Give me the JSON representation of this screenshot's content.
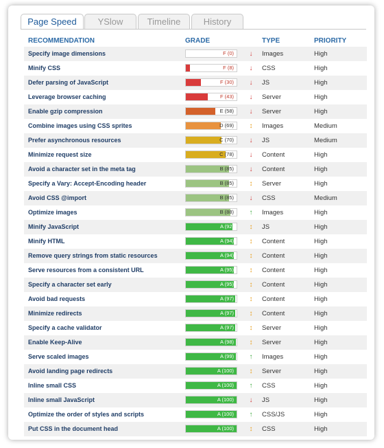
{
  "tabs": [
    {
      "label": "Page Speed",
      "active": true
    },
    {
      "label": "YSlow",
      "active": false
    },
    {
      "label": "Timeline",
      "active": false
    },
    {
      "label": "History",
      "active": false
    }
  ],
  "headers": {
    "recommendation": "RECOMMENDATION",
    "grade": "GRADE",
    "type": "TYPE",
    "priority": "PRIORITY"
  },
  "rows": [
    {
      "recommendation": "Specify image dimensions",
      "grade": "F (0)",
      "score": 0,
      "trend": "down",
      "type": "Images",
      "priority": "High"
    },
    {
      "recommendation": "Minify CSS",
      "grade": "F (8)",
      "score": 8,
      "trend": "down",
      "type": "CSS",
      "priority": "High"
    },
    {
      "recommendation": "Defer parsing of JavaScript",
      "grade": "F (30)",
      "score": 30,
      "trend": "down",
      "type": "JS",
      "priority": "High"
    },
    {
      "recommendation": "Leverage browser caching",
      "grade": "F (43)",
      "score": 43,
      "trend": "down",
      "type": "Server",
      "priority": "High"
    },
    {
      "recommendation": "Enable gzip compression",
      "grade": "E (58)",
      "score": 58,
      "trend": "down",
      "type": "Server",
      "priority": "High"
    },
    {
      "recommendation": "Combine images using CSS sprites",
      "grade": "D (69)",
      "score": 69,
      "trend": "both",
      "type": "Images",
      "priority": "Medium"
    },
    {
      "recommendation": "Prefer asynchronous resources",
      "grade": "C (70)",
      "score": 70,
      "trend": "down",
      "type": "JS",
      "priority": "Medium"
    },
    {
      "recommendation": "Minimize request size",
      "grade": "C (78)",
      "score": 78,
      "trend": "down",
      "type": "Content",
      "priority": "High"
    },
    {
      "recommendation": "Avoid a character set in the meta tag",
      "grade": "B (85)",
      "score": 85,
      "trend": "down",
      "type": "Content",
      "priority": "High"
    },
    {
      "recommendation": "Specify a Vary: Accept-Encoding header",
      "grade": "B (85)",
      "score": 85,
      "trend": "both",
      "type": "Server",
      "priority": "High"
    },
    {
      "recommendation": "Avoid CSS @import",
      "grade": "B (85)",
      "score": 85,
      "trend": "down",
      "type": "CSS",
      "priority": "Medium"
    },
    {
      "recommendation": "Optimize images",
      "grade": "B (88)",
      "score": 88,
      "trend": "up",
      "type": "Images",
      "priority": "High"
    },
    {
      "recommendation": "Minify JavaScript",
      "grade": "A (92)",
      "score": 92,
      "trend": "both",
      "type": "JS",
      "priority": "High"
    },
    {
      "recommendation": "Minify HTML",
      "grade": "A (94)",
      "score": 94,
      "trend": "both",
      "type": "Content",
      "priority": "High"
    },
    {
      "recommendation": "Remove query strings from static resources",
      "grade": "A (94)",
      "score": 94,
      "trend": "both",
      "type": "Content",
      "priority": "High"
    },
    {
      "recommendation": "Serve resources from a consistent URL",
      "grade": "A (95)",
      "score": 95,
      "trend": "both",
      "type": "Content",
      "priority": "High"
    },
    {
      "recommendation": "Specify a character set early",
      "grade": "A (95)",
      "score": 95,
      "trend": "both",
      "type": "Content",
      "priority": "High"
    },
    {
      "recommendation": "Avoid bad requests",
      "grade": "A (97)",
      "score": 97,
      "trend": "both",
      "type": "Content",
      "priority": "High"
    },
    {
      "recommendation": "Minimize redirects",
      "grade": "A (97)",
      "score": 97,
      "trend": "both",
      "type": "Content",
      "priority": "High"
    },
    {
      "recommendation": "Specify a cache validator",
      "grade": "A (97)",
      "score": 97,
      "trend": "both",
      "type": "Server",
      "priority": "High"
    },
    {
      "recommendation": "Enable Keep-Alive",
      "grade": "A (98)",
      "score": 98,
      "trend": "both",
      "type": "Server",
      "priority": "High"
    },
    {
      "recommendation": "Serve scaled images",
      "grade": "A (99)",
      "score": 99,
      "trend": "up",
      "type": "Images",
      "priority": "High"
    },
    {
      "recommendation": "Avoid landing page redirects",
      "grade": "A (100)",
      "score": 100,
      "trend": "both",
      "type": "Server",
      "priority": "High"
    },
    {
      "recommendation": "Inline small CSS",
      "grade": "A (100)",
      "score": 100,
      "trend": "up",
      "type": "CSS",
      "priority": "High"
    },
    {
      "recommendation": "Inline small JavaScript",
      "grade": "A (100)",
      "score": 100,
      "trend": "down",
      "type": "JS",
      "priority": "High"
    },
    {
      "recommendation": "Optimize the order of styles and scripts",
      "grade": "A (100)",
      "score": 100,
      "trend": "up",
      "type": "CSS/JS",
      "priority": "High"
    },
    {
      "recommendation": "Put CSS in the document head",
      "grade": "A (100)",
      "score": 100,
      "trend": "both",
      "type": "CSS",
      "priority": "High"
    }
  ],
  "colors": {
    "F": "#d93b3b",
    "E": "#d4612a",
    "D": "#e8923f",
    "C": "#d9ad1f",
    "B": "#9cc482",
    "A": "#3fb845",
    "arrow_down": "#d23c3c",
    "arrow_up": "#3ca83c",
    "arrow_both": "#e8a020"
  },
  "icons": {
    "down": "arrow-down-icon",
    "up": "arrow-up-icon",
    "both": "arrow-up-down-icon"
  }
}
